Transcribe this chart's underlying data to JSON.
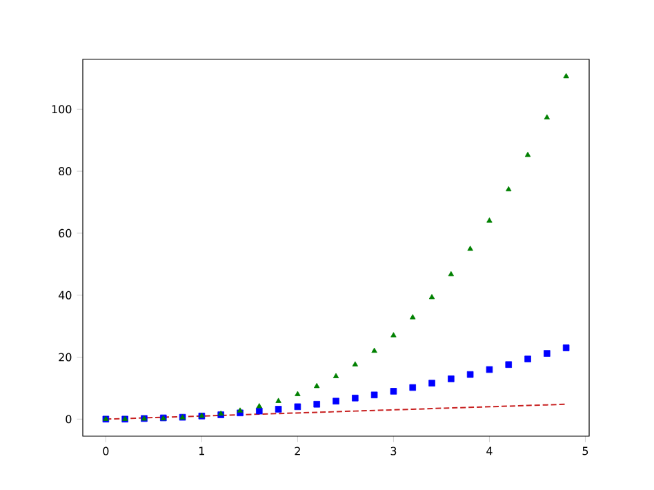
{
  "chart_data": {
    "type": "scatter",
    "x": [
      0,
      0.2,
      0.4,
      0.6,
      0.8,
      1.0,
      1.2,
      1.4,
      1.6,
      1.8,
      2.0,
      2.2,
      2.4,
      2.6,
      2.8,
      3.0,
      3.2,
      3.4,
      3.6,
      3.8,
      4.0,
      4.2,
      4.4,
      4.6,
      4.8
    ],
    "series": [
      {
        "type": "line",
        "color": "#c82020",
        "line_style": "dashed",
        "marker": "none",
        "values": [
          0,
          0.2,
          0.4,
          0.6,
          0.8,
          1.0,
          1.2,
          1.4,
          1.6,
          1.8,
          2.0,
          2.2,
          2.4,
          2.6,
          2.8,
          3.0,
          3.2,
          3.4,
          3.6,
          3.8,
          4.0,
          4.2,
          4.4,
          4.6,
          4.8
        ]
      },
      {
        "color": "#0000ff",
        "marker": "square",
        "values": [
          0,
          0,
          0.2,
          0.4,
          0.6,
          1.0,
          1.4,
          2.0,
          2.6,
          3.2,
          4.0,
          4.8,
          5.8,
          6.8,
          7.8,
          9.0,
          10.2,
          11.6,
          13.0,
          14.4,
          16.0,
          17.6,
          19.4,
          21.2,
          23.0
        ]
      },
      {
        "color": "#008000",
        "marker": "triangle",
        "values": [
          0,
          0,
          0.1,
          0.2,
          0.5,
          1.0,
          1.7,
          2.7,
          4.1,
          5.8,
          8.0,
          10.6,
          13.8,
          17.6,
          22.0,
          27.0,
          32.8,
          39.3,
          46.7,
          54.9,
          64.0,
          74.1,
          85.2,
          97.3,
          110.6
        ]
      }
    ],
    "xlim": [
      -0.24,
      5.04
    ],
    "ylim": [
      -5.5,
      116.1
    ],
    "xticks": [
      0,
      1,
      2,
      3,
      4,
      5
    ],
    "yticks": [
      0,
      20,
      40,
      60,
      80,
      100
    ],
    "grid": false
  }
}
